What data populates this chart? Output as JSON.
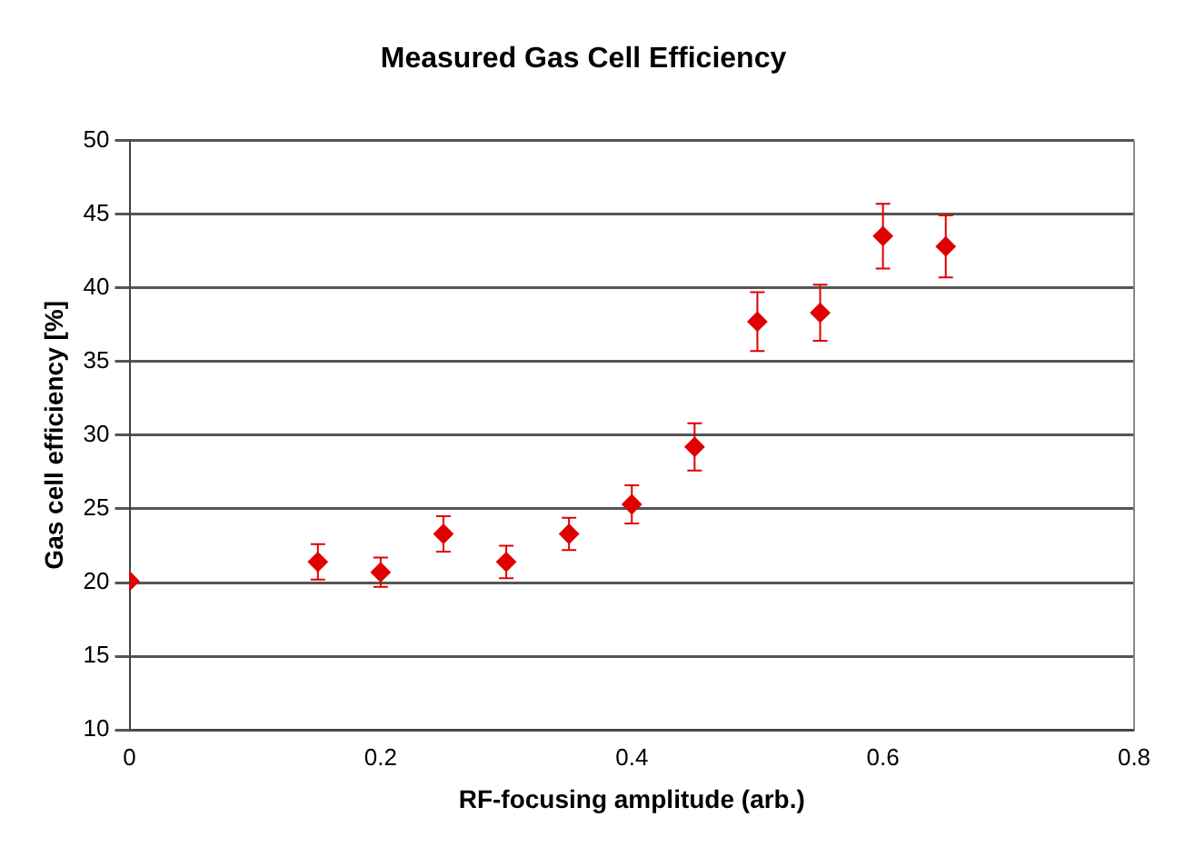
{
  "chart_data": {
    "type": "scatter",
    "title": "Measured Gas Cell Efficiency",
    "xlabel": "RF-focusing amplitude (arb.)",
    "ylabel": "Gas cell efficiency [%]",
    "x": [
      0,
      0.15,
      0.2,
      0.25,
      0.3,
      0.35,
      0.4,
      0.45,
      0.5,
      0.55,
      0.6,
      0.65
    ],
    "series": [
      {
        "color": "#e00000",
        "values": [
          20.1,
          21.4,
          20.7,
          23.3,
          21.4,
          23.3,
          25.3,
          29.2,
          37.7,
          38.3,
          43.5,
          42.8
        ],
        "errors": [
          null,
          1.2,
          1.0,
          1.2,
          1.1,
          1.1,
          1.3,
          1.6,
          2.0,
          1.9,
          2.2,
          2.1
        ]
      }
    ],
    "xlim": [
      0,
      0.8
    ],
    "xticks": [
      0,
      0.2,
      0.4,
      0.6,
      0.8
    ],
    "ylim": [
      10,
      50
    ],
    "yticks": [
      10,
      15,
      20,
      25,
      30,
      35,
      40,
      45,
      50
    ],
    "grid": "y",
    "legend": false,
    "marker": "diamond"
  }
}
